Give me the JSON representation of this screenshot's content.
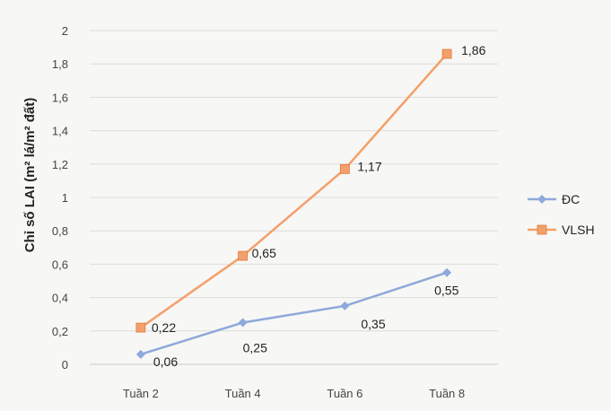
{
  "chart_data": {
    "type": "line",
    "title": "",
    "xlabel": "",
    "ylabel": "Chỉ số LAI (m² lá/m² đất)",
    "categories": [
      "Tuần 2",
      "Tuần 4",
      "Tuần 6",
      "Tuần 8"
    ],
    "ylim": [
      0,
      2
    ],
    "yticks": [
      "0",
      "0,2",
      "0,4",
      "0,6",
      "0,8",
      "1",
      "1,2",
      "1,4",
      "1,6",
      "1,8",
      "2"
    ],
    "grid": true,
    "legend_position": "right",
    "series": [
      {
        "name": "ĐC",
        "values": [
          0.06,
          0.25,
          0.35,
          0.55
        ],
        "labels": [
          "0,06",
          "0,25",
          "0,35",
          "0,55"
        ],
        "color": "#8EA9DB",
        "marker": "diamond"
      },
      {
        "name": "VLSH",
        "values": [
          0.22,
          0.65,
          1.17,
          1.86
        ],
        "labels": [
          "0,22",
          "0,65",
          "1,17",
          "1,86"
        ],
        "color": "#F4A06A",
        "marker": "square"
      }
    ]
  }
}
